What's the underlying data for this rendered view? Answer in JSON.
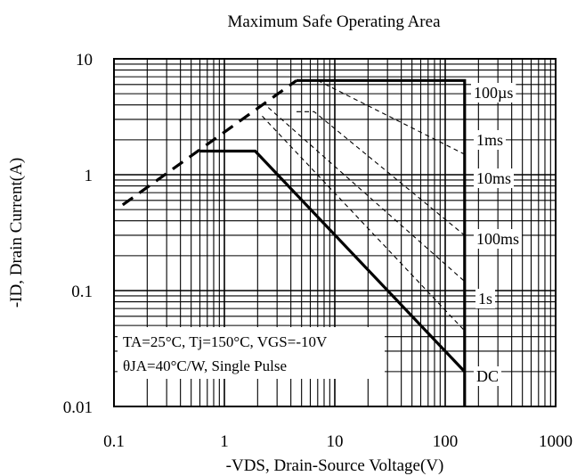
{
  "chart_data": {
    "type": "line",
    "title": "Maximum Safe Operating Area",
    "xlabel": "-VDS, Drain-Source Voltage(V)",
    "ylabel": "-ID, Drain Current(A)",
    "xscale": "log",
    "yscale": "log",
    "xlim": [
      0.1,
      1000
    ],
    "ylim": [
      0.01,
      10
    ],
    "x_ticks": [
      "0.1",
      "1",
      "10",
      "100",
      "1000"
    ],
    "y_ticks": [
      "0.01",
      "0.1",
      "1",
      "10"
    ],
    "grid": true,
    "annotations": [
      "TA=25°C, Tj=150°C, VGS=-10V",
      "θJA=40°C/W, Single Pulse"
    ],
    "series": [
      {
        "name": "100µs",
        "style": "thick-solid",
        "points": [
          [
            4.5,
            6.5
          ],
          [
            150,
            6.5
          ],
          [
            150,
            0.01
          ]
        ]
      },
      {
        "name": "1ms",
        "style": "thin-dashed",
        "points": [
          [
            7,
            6.5
          ],
          [
            150,
            1.5
          ]
        ]
      },
      {
        "name": "10ms",
        "style": "thin-dashed",
        "points": [
          [
            4.5,
            3.5
          ],
          [
            6.5,
            3.5
          ],
          [
            150,
            0.3
          ]
        ]
      },
      {
        "name": "100ms",
        "style": "thin-dashed",
        "points": [
          [
            2.5,
            3.8
          ],
          [
            150,
            0.12
          ]
        ]
      },
      {
        "name": "1s",
        "style": "thin-dashed",
        "points": [
          [
            2.2,
            3.2
          ],
          [
            150,
            0.045
          ]
        ]
      },
      {
        "name": "DC",
        "style": "thick-solid",
        "points": [
          [
            0.6,
            1.6
          ],
          [
            1.9,
            1.6
          ],
          [
            150,
            0.02
          ]
        ]
      },
      {
        "name": "",
        "style": "thick-dashed",
        "points": [
          [
            0.12,
            0.55
          ],
          [
            4.5,
            6.5
          ]
        ]
      }
    ],
    "series_labels": [
      "100µs",
      "1ms",
      "10ms",
      "100ms",
      "1s",
      "DC"
    ]
  }
}
